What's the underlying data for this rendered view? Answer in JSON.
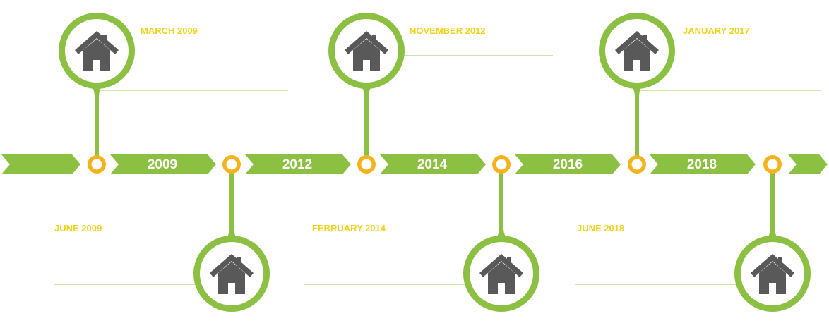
{
  "colors": {
    "green": "#8cc042",
    "green_line": "#9ccc5a",
    "orange": "#f6b21b",
    "label_yellow": "#f2d21c",
    "icon_gray": "#595959",
    "inner_white": "#ffffff"
  },
  "icon": "house-icon",
  "years": [
    "2009",
    "2012",
    "2014",
    "2016",
    "2018"
  ],
  "events": [
    {
      "date": "MARCH 2009",
      "side": "top"
    },
    {
      "date": "JUNE 2009",
      "side": "bottom"
    },
    {
      "date": "NOVEMBER 2012",
      "side": "top"
    },
    {
      "date": "FEBRUARY 2014",
      "side": "bottom"
    },
    {
      "date": "JANUARY 2017",
      "side": "top"
    },
    {
      "date": "JUNE 2018",
      "side": "bottom"
    }
  ]
}
